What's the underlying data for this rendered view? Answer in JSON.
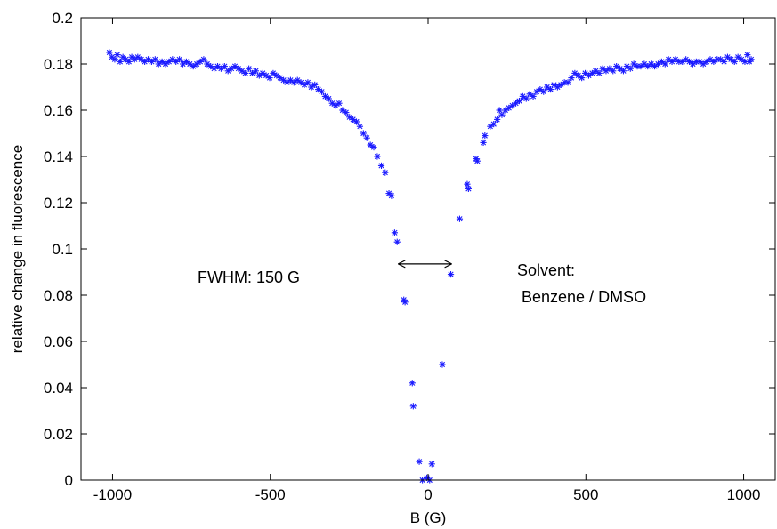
{
  "chart_data": {
    "type": "scatter",
    "title": "",
    "xlabel": "B (G)",
    "ylabel": "relative change in fluorescence",
    "xlim": [
      -1100,
      1100
    ],
    "ylim": [
      0,
      0.2
    ],
    "xticks": [
      -1000,
      -500,
      0,
      500,
      1000
    ],
    "yticks": [
      0,
      0.02,
      0.04,
      0.06,
      0.08,
      0.1,
      0.12,
      0.14,
      0.16,
      0.18,
      0.2
    ],
    "xtick_labels": [
      "-1000",
      "-500",
      "0",
      "500",
      "1000"
    ],
    "ytick_labels": [
      "0",
      "0.02",
      "0.04",
      "0.06",
      "0.08",
      "0.1",
      "0.12",
      "0.14",
      "0.16",
      "0.18",
      "0.2"
    ],
    "grid": false,
    "marker": "asterisk",
    "marker_color": "#1a1aff",
    "annotations": {
      "fwhm": "FWHM: 150 G",
      "solvent_line1": "Solvent:",
      "solvent_line2": " Benzene / DMSO"
    },
    "fwhm_arrow": {
      "x_start": -95,
      "x_end": 75,
      "y": 0.0935
    },
    "series": [
      {
        "points": [
          [
            -1010,
            0.185
          ],
          [
            -1002,
            0.183
          ],
          [
            -993,
            0.182
          ],
          [
            -985,
            0.184
          ],
          [
            -976,
            0.181
          ],
          [
            -967,
            0.183
          ],
          [
            -958,
            0.182
          ],
          [
            -948,
            0.181
          ],
          [
            -939,
            0.183
          ],
          [
            -930,
            0.182
          ],
          [
            -920,
            0.183
          ],
          [
            -909,
            0.182
          ],
          [
            -898,
            0.181
          ],
          [
            -887,
            0.182
          ],
          [
            -876,
            0.181
          ],
          [
            -865,
            0.182
          ],
          [
            -854,
            0.18
          ],
          [
            -843,
            0.181
          ],
          [
            -832,
            0.18
          ],
          [
            -821,
            0.181
          ],
          [
            -810,
            0.182
          ],
          [
            -799,
            0.181
          ],
          [
            -788,
            0.182
          ],
          [
            -777,
            0.18
          ],
          [
            -766,
            0.181
          ],
          [
            -755,
            0.18
          ],
          [
            -744,
            0.179
          ],
          [
            -733,
            0.18
          ],
          [
            -722,
            0.181
          ],
          [
            -711,
            0.182
          ],
          [
            -700,
            0.18
          ],
          [
            -689,
            0.179
          ],
          [
            -678,
            0.178
          ],
          [
            -667,
            0.179
          ],
          [
            -656,
            0.178
          ],
          [
            -645,
            0.179
          ],
          [
            -634,
            0.177
          ],
          [
            -623,
            0.178
          ],
          [
            -612,
            0.179
          ],
          [
            -601,
            0.178
          ],
          [
            -590,
            0.177
          ],
          [
            -579,
            0.176
          ],
          [
            -568,
            0.178
          ],
          [
            -557,
            0.176
          ],
          [
            -546,
            0.177
          ],
          [
            -535,
            0.175
          ],
          [
            -524,
            0.176
          ],
          [
            -513,
            0.175
          ],
          [
            -502,
            0.174
          ],
          [
            -491,
            0.176
          ],
          [
            -480,
            0.175
          ],
          [
            -469,
            0.174
          ],
          [
            -458,
            0.173
          ],
          [
            -447,
            0.172
          ],
          [
            -436,
            0.173
          ],
          [
            -425,
            0.172
          ],
          [
            -414,
            0.173
          ],
          [
            -403,
            0.172
          ],
          [
            -392,
            0.171
          ],
          [
            -381,
            0.172
          ],
          [
            -370,
            0.17
          ],
          [
            -359,
            0.171
          ],
          [
            -348,
            0.169
          ],
          [
            -337,
            0.168
          ],
          [
            -326,
            0.166
          ],
          [
            -315,
            0.165
          ],
          [
            -304,
            0.163
          ],
          [
            -293,
            0.162
          ],
          [
            -282,
            0.163
          ],
          [
            -271,
            0.16
          ],
          [
            -260,
            0.159
          ],
          [
            -249,
            0.157
          ],
          [
            -238,
            0.156
          ],
          [
            -227,
            0.155
          ],
          [
            -216,
            0.153
          ],
          [
            -205,
            0.15
          ],
          [
            -194,
            0.148
          ],
          [
            -183,
            0.145
          ],
          [
            -172,
            0.144
          ],
          [
            -161,
            0.14
          ],
          [
            -148,
            0.136
          ],
          [
            -136,
            0.133
          ],
          [
            -124,
            0.124
          ],
          [
            -116,
            0.123
          ],
          [
            -106,
            0.107
          ],
          [
            -98,
            0.103
          ],
          [
            -77,
            0.078
          ],
          [
            -73,
            0.077
          ],
          [
            -50,
            0.042
          ],
          [
            -47,
            0.032
          ],
          [
            -28,
            0.008
          ],
          [
            -18,
            0.0
          ],
          [
            -4,
            0.001
          ],
          [
            12,
            0.007
          ],
          [
            5,
            0.0
          ],
          [
            45,
            0.05
          ],
          [
            72,
            0.089
          ],
          [
            100,
            0.113
          ],
          [
            124,
            0.128
          ],
          [
            128,
            0.126
          ],
          [
            152,
            0.139
          ],
          [
            156,
            0.138
          ],
          [
            175,
            0.146
          ],
          [
            180,
            0.149
          ],
          [
            197,
            0.153
          ],
          [
            208,
            0.154
          ],
          [
            219,
            0.156
          ],
          [
            226,
            0.16
          ],
          [
            234,
            0.158
          ],
          [
            245,
            0.16
          ],
          [
            256,
            0.161
          ],
          [
            267,
            0.162
          ],
          [
            278,
            0.163
          ],
          [
            289,
            0.164
          ],
          [
            300,
            0.166
          ],
          [
            311,
            0.165
          ],
          [
            322,
            0.167
          ],
          [
            333,
            0.166
          ],
          [
            344,
            0.168
          ],
          [
            355,
            0.169
          ],
          [
            366,
            0.168
          ],
          [
            377,
            0.17
          ],
          [
            388,
            0.169
          ],
          [
            399,
            0.171
          ],
          [
            410,
            0.17
          ],
          [
            421,
            0.171
          ],
          [
            432,
            0.172
          ],
          [
            443,
            0.172
          ],
          [
            454,
            0.174
          ],
          [
            465,
            0.176
          ],
          [
            476,
            0.175
          ],
          [
            487,
            0.174
          ],
          [
            498,
            0.176
          ],
          [
            509,
            0.175
          ],
          [
            520,
            0.176
          ],
          [
            531,
            0.177
          ],
          [
            542,
            0.176
          ],
          [
            553,
            0.178
          ],
          [
            564,
            0.177
          ],
          [
            575,
            0.178
          ],
          [
            586,
            0.177
          ],
          [
            597,
            0.179
          ],
          [
            608,
            0.178
          ],
          [
            619,
            0.177
          ],
          [
            630,
            0.179
          ],
          [
            641,
            0.178
          ],
          [
            652,
            0.18
          ],
          [
            663,
            0.179
          ],
          [
            674,
            0.179
          ],
          [
            685,
            0.18
          ],
          [
            696,
            0.179
          ],
          [
            707,
            0.18
          ],
          [
            718,
            0.179
          ],
          [
            729,
            0.18
          ],
          [
            740,
            0.181
          ],
          [
            751,
            0.18
          ],
          [
            762,
            0.182
          ],
          [
            773,
            0.181
          ],
          [
            784,
            0.182
          ],
          [
            795,
            0.181
          ],
          [
            806,
            0.181
          ],
          [
            817,
            0.182
          ],
          [
            828,
            0.181
          ],
          [
            839,
            0.18
          ],
          [
            850,
            0.181
          ],
          [
            861,
            0.181
          ],
          [
            872,
            0.18
          ],
          [
            883,
            0.181
          ],
          [
            894,
            0.182
          ],
          [
            905,
            0.181
          ],
          [
            916,
            0.182
          ],
          [
            927,
            0.182
          ],
          [
            938,
            0.181
          ],
          [
            949,
            0.183
          ],
          [
            960,
            0.182
          ],
          [
            971,
            0.181
          ],
          [
            982,
            0.183
          ],
          [
            993,
            0.182
          ],
          [
            1004,
            0.181
          ],
          [
            1012,
            0.184
          ],
          [
            1018,
            0.181
          ],
          [
            1024,
            0.182
          ]
        ]
      }
    ]
  }
}
